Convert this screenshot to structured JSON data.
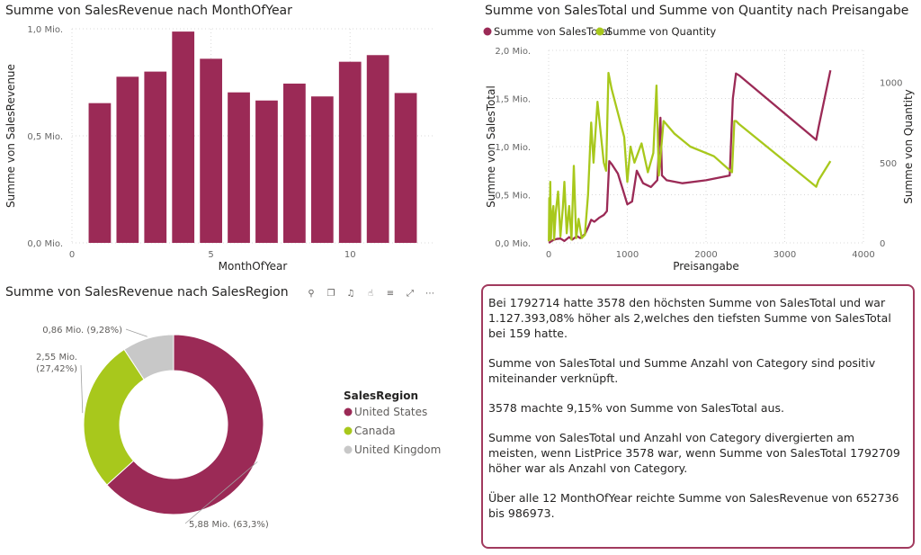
{
  "colors": {
    "primary": "#9b2a56",
    "secondary": "#a8c81c",
    "tertiary": "#c8c8c8",
    "text": "#252423",
    "axis": "#666666",
    "grid": "#d9d9d9"
  },
  "toolbar": {
    "icons": [
      {
        "name": "pin-icon",
        "glyph": "⚲"
      },
      {
        "name": "copy-icon",
        "glyph": "❐"
      },
      {
        "name": "alert-icon",
        "glyph": "♫"
      },
      {
        "name": "like-icon",
        "glyph": "☝"
      },
      {
        "name": "filter-icon",
        "glyph": "≡"
      },
      {
        "name": "focus-icon",
        "glyph": "⤢"
      },
      {
        "name": "more-icon",
        "glyph": "⋯"
      }
    ]
  },
  "chart_data": [
    {
      "id": "bar",
      "type": "bar",
      "title": "Summe von SalesRevenue nach MonthOfYear",
      "xlabel": "MonthOfYear",
      "ylabel": "Summe von SalesRevenue",
      "x": [
        1,
        2,
        3,
        4,
        5,
        6,
        7,
        8,
        9,
        10,
        11,
        12
      ],
      "values": [
        652736,
        776000,
        800000,
        986973,
        860000,
        703000,
        665000,
        744000,
        684000,
        846000,
        877000,
        700000
      ],
      "xlim": [
        0,
        13
      ],
      "ylim": [
        0,
        1000000
      ],
      "xticks": [
        0,
        5,
        10
      ],
      "yticks": [
        {
          "v": 0,
          "label": "0,0 Mio."
        },
        {
          "v": 500000,
          "label": "0,5 Mio."
        },
        {
          "v": 1000000,
          "label": "1,0 Mio."
        }
      ]
    },
    {
      "id": "line",
      "type": "line",
      "title": "Summe von SalesTotal und Summe von Quantity nach Preisangabe",
      "xlabel": "Preisangabe",
      "ylabel": "Summe von SalesTotal",
      "y2label": "Summe von Quantity",
      "xlim": [
        0,
        4000
      ],
      "ylim": [
        0,
        2000000
      ],
      "y2lim": [
        0,
        1200
      ],
      "xticks": [
        0,
        1000,
        2000,
        3000,
        4000
      ],
      "yticks": [
        {
          "v": 0,
          "label": "0,0 Mio."
        },
        {
          "v": 500000,
          "label": "0,5 Mio."
        },
        {
          "v": 1000000,
          "label": "1,0 Mio."
        },
        {
          "v": 1500000,
          "label": "1,5 Mio."
        },
        {
          "v": 2000000,
          "label": "2,0 Mio."
        }
      ],
      "y2ticks": [
        0,
        500,
        1000
      ],
      "series": [
        {
          "name": "Summe von SalesTotal",
          "axis": "y",
          "points": [
            [
              2,
              0
            ],
            [
              30,
              15000
            ],
            [
              60,
              30000
            ],
            [
              100,
              40000
            ],
            [
              150,
              45000
            ],
            [
              200,
              20000
            ],
            [
              260,
              60000
            ],
            [
              300,
              35000
            ],
            [
              360,
              70000
            ],
            [
              400,
              50000
            ],
            [
              460,
              90000
            ],
            [
              500,
              160000
            ],
            [
              540,
              240000
            ],
            [
              580,
              220000
            ],
            [
              640,
              260000
            ],
            [
              700,
              290000
            ],
            [
              740,
              330000
            ],
            [
              770,
              850000
            ],
            [
              800,
              820000
            ],
            [
              880,
              720000
            ],
            [
              940,
              560000
            ],
            [
              1000,
              400000
            ],
            [
              1060,
              430000
            ],
            [
              1120,
              750000
            ],
            [
              1200,
              620000
            ],
            [
              1300,
              580000
            ],
            [
              1380,
              650000
            ],
            [
              1420,
              1300000
            ],
            [
              1440,
              700000
            ],
            [
              1500,
              650000
            ],
            [
              1700,
              620000
            ],
            [
              2000,
              650000
            ],
            [
              2300,
              700000
            ],
            [
              2340,
              1500000
            ],
            [
              2380,
              1760000
            ],
            [
              2420,
              1740000
            ],
            [
              3400,
              1070000
            ],
            [
              3430,
              1200000
            ],
            [
              3580,
              1792714
            ]
          ]
        },
        {
          "name": "Summe von Quantity",
          "axis": "y2",
          "points": [
            [
              2,
              10
            ],
            [
              8,
              280
            ],
            [
              14,
              100
            ],
            [
              20,
              380
            ],
            [
              28,
              20
            ],
            [
              40,
              160
            ],
            [
              60,
              230
            ],
            [
              70,
              20
            ],
            [
              90,
              190
            ],
            [
              120,
              320
            ],
            [
              150,
              40
            ],
            [
              180,
              220
            ],
            [
              200,
              380
            ],
            [
              230,
              60
            ],
            [
              260,
              230
            ],
            [
              290,
              20
            ],
            [
              320,
              480
            ],
            [
              350,
              30
            ],
            [
              380,
              150
            ],
            [
              420,
              30
            ],
            [
              460,
              50
            ],
            [
              500,
              300
            ],
            [
              540,
              750
            ],
            [
              570,
              500
            ],
            [
              620,
              880
            ],
            [
              700,
              500
            ],
            [
              730,
              450
            ],
            [
              760,
              1060
            ],
            [
              800,
              960
            ],
            [
              960,
              660
            ],
            [
              1000,
              380
            ],
            [
              1040,
              600
            ],
            [
              1090,
              500
            ],
            [
              1180,
              620
            ],
            [
              1260,
              440
            ],
            [
              1330,
              560
            ],
            [
              1370,
              980
            ],
            [
              1400,
              420
            ],
            [
              1460,
              760
            ],
            [
              1600,
              680
            ],
            [
              1800,
              600
            ],
            [
              2100,
              540
            ],
            [
              2330,
              440
            ],
            [
              2360,
              760
            ],
            [
              2380,
              760
            ],
            [
              2420,
              740
            ],
            [
              3400,
              350
            ],
            [
              3430,
              390
            ],
            [
              3580,
              510
            ]
          ]
        }
      ]
    },
    {
      "id": "donut",
      "type": "pie",
      "title": "Summe von SalesRevenue nach SalesRegion",
      "legend_title": "SalesRegion",
      "slices": [
        {
          "label": "United States",
          "value": 5.88,
          "text": "5,88 Mio. (63,3%)"
        },
        {
          "label": "Canada",
          "value": 2.55,
          "text": "2,55 Mio. (27,42%)"
        },
        {
          "label": "United Kingdom",
          "value": 0.86,
          "text": "0,86 Mio. (9,28%)"
        }
      ]
    }
  ],
  "narrative": {
    "p1": "Bei 1792714 hatte 3578 den höchsten Summe von SalesTotal und war 1.127.393,08% höher als 2,welches den tiefsten Summe von SalesTotal bei 159 hatte.",
    "p2": "Summe von SalesTotal und Summe Anzahl von Category sind positiv miteinander verknüpft.",
    "p3": "3578 machte 9,15% von Summe von SalesTotal aus.",
    "p4": "Summe von SalesTotal und Anzahl von Category divergierten am meisten, wenn ListPrice 3578 war, wenn Summe von SalesTotal 1792709 höher war als Anzahl von Category.",
    "p5": "Über alle 12 MonthOfYear reichte Summe von SalesRevenue von 652736 bis 986973."
  }
}
